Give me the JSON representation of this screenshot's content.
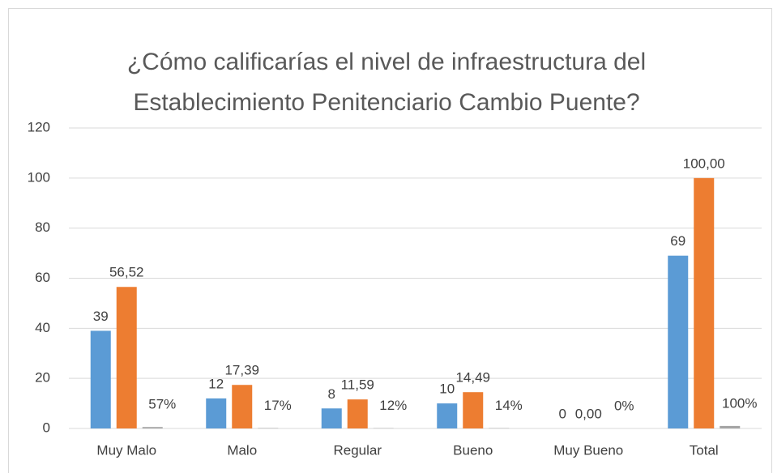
{
  "chart_data": {
    "type": "bar",
    "title": "¿Cómo calificarías el nivel de infraestructura del Establecimiento Penitenciario Cambio Puente?",
    "categories": [
      "Muy Malo",
      "Malo",
      "Regular",
      "Bueno",
      "Muy Bueno",
      "Total"
    ],
    "series": [
      {
        "color": "#5b9bd5",
        "values": [
          39,
          12,
          8,
          10,
          0,
          69
        ]
      },
      {
        "color": "#ed7d31",
        "values": [
          56.52,
          17.39,
          11.59,
          14.49,
          0,
          100
        ],
        "value_labels": [
          "56,52",
          "17,39",
          "11,59",
          "14,49",
          "0,00",
          "100,00"
        ]
      },
      {
        "color": "#a5a5a5",
        "values": [
          0.57,
          0.17,
          0.12,
          0.14,
          0,
          1
        ],
        "value_labels": [
          "57%",
          "17%",
          "12%",
          "14%",
          "0%",
          "100%"
        ]
      }
    ],
    "ylim": [
      0,
      120
    ],
    "yticks": [
      0,
      20,
      40,
      60,
      80,
      100,
      120
    ],
    "grid": true
  }
}
